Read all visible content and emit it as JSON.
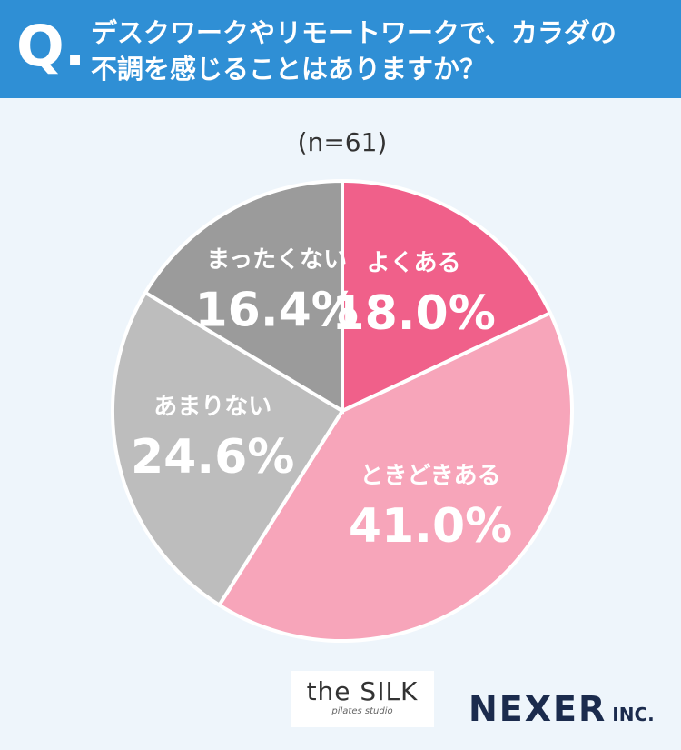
{
  "header": {
    "mark": "Q.",
    "question": "デスクワークやリモートワークで、カラダの不調を感じることはありますか？"
  },
  "chart_data": {
    "type": "pie",
    "subtitle": "(n=61)",
    "categories": [
      "よくある",
      "ときどきある",
      "あまりない",
      "まったくない"
    ],
    "values": [
      18.0,
      41.0,
      24.6,
      16.4
    ],
    "value_labels": [
      "18.0%",
      "41.0%",
      "24.6%",
      "16.4%"
    ],
    "colors": [
      "#f0608a",
      "#f7a5ba",
      "#bdbdbd",
      "#9b9b9b"
    ]
  },
  "footer": {
    "brand": "the SILK",
    "brand_sub": "pilates studio",
    "company": "NEXER",
    "company_suffix": "INC."
  }
}
